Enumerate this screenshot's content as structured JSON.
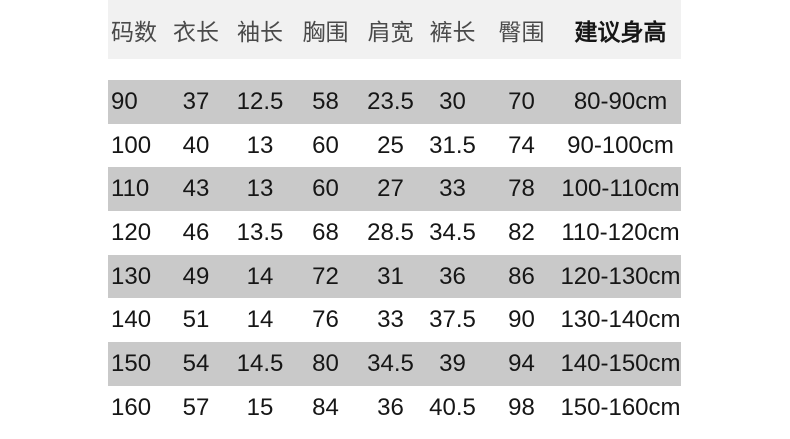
{
  "size_chart": {
    "columns": [
      {
        "key": "size",
        "label": "码数"
      },
      {
        "key": "clothes_length",
        "label": "衣长"
      },
      {
        "key": "sleeve_length",
        "label": "袖长"
      },
      {
        "key": "chest",
        "label": "胸围"
      },
      {
        "key": "shoulder_width",
        "label": "肩宽"
      },
      {
        "key": "pants_length",
        "label": "裤长"
      },
      {
        "key": "hip",
        "label": "臀围"
      },
      {
        "key": "recommended_height",
        "label": "建议身高"
      }
    ],
    "rows": [
      {
        "cells": [
          "90",
          "37",
          "12.5",
          "58",
          "23.5",
          "30",
          "70",
          "80-90cm"
        ]
      },
      {
        "cells": [
          "100",
          "40",
          "13",
          "60",
          "25",
          "31.5",
          "74",
          "90-100cm"
        ]
      },
      {
        "cells": [
          "110",
          "43",
          "13",
          "60",
          "27",
          "33",
          "78",
          "100-110cm"
        ]
      },
      {
        "cells": [
          "120",
          "46",
          "13.5",
          "68",
          "28.5",
          "34.5",
          "82",
          "110-120cm"
        ]
      },
      {
        "cells": [
          "130",
          "49",
          "14",
          "72",
          "31",
          "36",
          "86",
          "120-130cm"
        ]
      },
      {
        "cells": [
          "140",
          "51",
          "14",
          "76",
          "33",
          "37.5",
          "90",
          "130-140cm"
        ]
      },
      {
        "cells": [
          "150",
          "54",
          "14.5",
          "80",
          "34.5",
          "39",
          "94",
          "140-150cm"
        ]
      },
      {
        "cells": [
          "160",
          "57",
          "15",
          "84",
          "36",
          "40.5",
          "98",
          "150-160cm"
        ]
      }
    ],
    "colors": {
      "header_bg": "#f1f1f1",
      "stripe_bg": "#c9c9c9",
      "row_bg": "#ffffff",
      "header_text": "#4a4a4a",
      "data_text": "#161616"
    }
  }
}
